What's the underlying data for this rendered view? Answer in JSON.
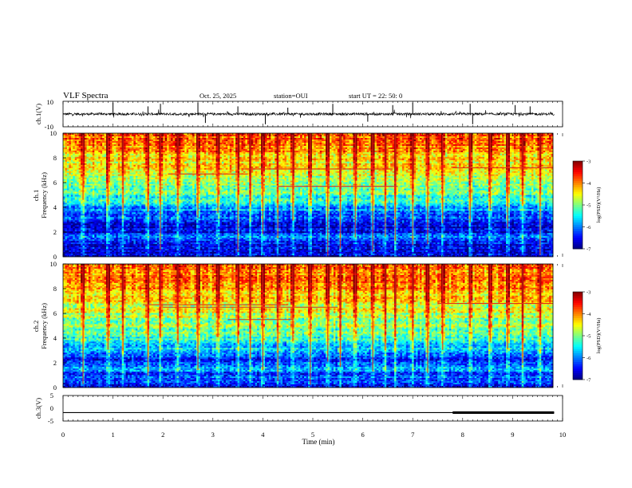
{
  "header": {
    "title": "VLF Spectra",
    "date": "Oct. 25, 2025",
    "station": "station=OUI",
    "start": "start  UT  =   22: 50: 0"
  },
  "colors": {
    "background": "#ffffff",
    "axes": "#000000",
    "spectro_red": "#e0001a",
    "spectro_yellow": "#d8e000",
    "spectro_green": "#28e640",
    "spectro_cyan": "#28b8f0",
    "spectro_blue": "#0010c8"
  },
  "chart_data": [
    {
      "type": "line",
      "id": "ch1",
      "ylabel": "ch.1(V)",
      "ylim": [
        -10,
        10
      ],
      "ytick_labels": [
        "10",
        "-10"
      ],
      "x_range_min": [
        0,
        9.83
      ],
      "baseline_value": 0,
      "noise_amplitude": 2,
      "impulses": [
        [
          1.0,
          9
        ],
        [
          1.7,
          6
        ],
        [
          1.95,
          8
        ],
        [
          2.7,
          9
        ],
        [
          2.85,
          -7
        ],
        [
          3.5,
          6
        ],
        [
          4.05,
          -8
        ],
        [
          4.5,
          5
        ],
        [
          5.4,
          8
        ],
        [
          6.1,
          -6
        ],
        [
          6.6,
          7
        ],
        [
          7.0,
          9
        ],
        [
          8.15,
          8
        ],
        [
          8.2,
          -8
        ],
        [
          9.05,
          7
        ],
        [
          9.35,
          6
        ]
      ]
    },
    {
      "type": "heatmap",
      "id": "ch1_spec",
      "ylabel": "ch.1\nFrequency (kHz)",
      "ylabel_line1": "ch.1",
      "ylabel_line2": "Frequency (kHz)",
      "ylim": [
        0,
        10
      ],
      "ytick_labels": [
        "0",
        "2",
        "4",
        "6",
        "8",
        "10"
      ],
      "colorscale": "jet",
      "colorbar_label": "log(PSD)(V²/Hz)",
      "colorbar_ticks": [
        "-3",
        "-4",
        "-5",
        "-6",
        "-7"
      ],
      "zlim": [
        -7,
        -3
      ],
      "band_profile_kHz_log": [
        [
          0,
          -6.8
        ],
        [
          0.3,
          -6.5
        ],
        [
          0.8,
          -6.6
        ],
        [
          1.5,
          -6.0
        ],
        [
          2.0,
          -6.7
        ],
        [
          2.6,
          -6.5
        ],
        [
          3.2,
          -6.3
        ],
        [
          4.0,
          -5.8
        ],
        [
          5.0,
          -5.2
        ],
        [
          6.0,
          -4.9
        ],
        [
          7.0,
          -4.6
        ],
        [
          8.0,
          -4.3
        ],
        [
          9.0,
          -4.0
        ],
        [
          10.0,
          -3.8
        ]
      ],
      "sferic_times_min": [
        0.4,
        0.9,
        1.2,
        1.7,
        1.95,
        2.3,
        2.7,
        3.1,
        3.5,
        3.75,
        4.0,
        4.3,
        4.6,
        4.95,
        5.3,
        5.55,
        5.85,
        6.2,
        6.45,
        6.65,
        7.0,
        7.3,
        7.6,
        8.15,
        8.55,
        8.9,
        9.2,
        9.55
      ],
      "tone_lines": [
        [
          3.6,
          6.6,
          7.1
        ],
        [
          4.3,
          6.7,
          5.7
        ],
        [
          7.8,
          9.8,
          7.2
        ],
        [
          2.1,
          3.7,
          6.7
        ]
      ]
    },
    {
      "type": "heatmap",
      "id": "ch2_spec",
      "ylabel": "ch.2\nFrequency (kHz)",
      "ylabel_line1": "ch.2",
      "ylabel_line2": "Frequency (kHz)",
      "ylim": [
        0,
        10
      ],
      "ytick_labels": [
        "0",
        "2",
        "4",
        "6",
        "8",
        "10"
      ],
      "colorscale": "jet",
      "colorbar_label": "log(PSD)(V²/Hz)",
      "colorbar_ticks": [
        "-3",
        "-4",
        "-5",
        "-6",
        "-7"
      ],
      "zlim": [
        -7,
        -3
      ],
      "band_profile_kHz_log": [
        [
          0,
          -6.6
        ],
        [
          0.5,
          -6.0
        ],
        [
          1.0,
          -6.4
        ],
        [
          1.6,
          -5.8
        ],
        [
          2.2,
          -6.5
        ],
        [
          2.8,
          -5.8
        ],
        [
          3.4,
          -5.6
        ],
        [
          4.0,
          -5.3
        ],
        [
          5.0,
          -5.0
        ],
        [
          6.0,
          -4.7
        ],
        [
          7.0,
          -4.5
        ],
        [
          8.0,
          -4.2
        ],
        [
          9.0,
          -4.0
        ],
        [
          10.0,
          -3.8
        ]
      ],
      "sferic_times_min": [
        0.4,
        0.9,
        1.2,
        1.7,
        1.95,
        2.3,
        2.7,
        3.1,
        3.5,
        3.75,
        4.0,
        4.3,
        4.6,
        4.95,
        5.3,
        5.55,
        5.85,
        6.2,
        6.45,
        6.65,
        7.0,
        7.3,
        7.6,
        8.15,
        8.55,
        8.9,
        9.2,
        9.55
      ],
      "tone_lines": [
        [
          1.6,
          4.5,
          6.7
        ],
        [
          2.0,
          5.5,
          6.5
        ],
        [
          3.3,
          4.6,
          5.5
        ],
        [
          7.5,
          9.8,
          6.8
        ]
      ]
    },
    {
      "type": "line",
      "id": "ch3",
      "ylabel": "ch.3(V)",
      "ylim": [
        -5,
        5
      ],
      "ytick_labels": [
        "5",
        "0",
        "-5"
      ],
      "x_range_min": [
        0,
        9.83
      ],
      "baseline_value": -1.7,
      "thick_segment_min": [
        7.8,
        9.83
      ]
    }
  ],
  "x_axis": {
    "label": "Time (min)",
    "xlim": [
      0,
      10
    ],
    "tick_labels": [
      "0",
      "1",
      "2",
      "3",
      "4",
      "5",
      "6",
      "7",
      "8",
      "9",
      "10"
    ]
  }
}
